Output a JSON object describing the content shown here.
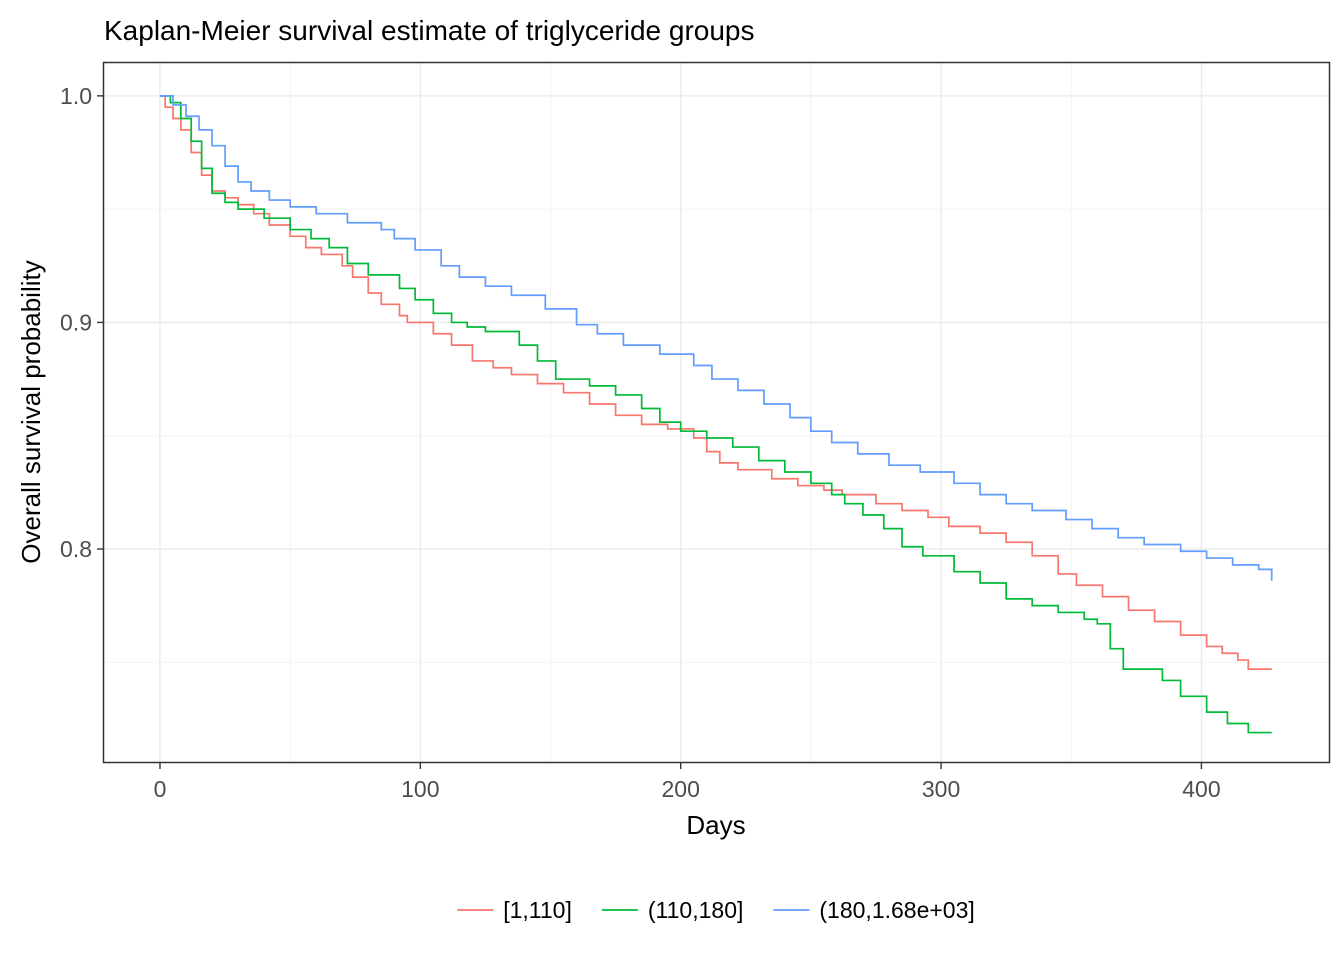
{
  "chart_data": {
    "type": "line",
    "step": true,
    "title": "Kaplan-Meier survival estimate of triglyceride groups",
    "xlabel": "Days",
    "ylabel": "Overall survival probability",
    "xlim": [
      -21.5,
      449
    ],
    "ylim": [
      0.706,
      1.0145
    ],
    "x_ticks": [
      0,
      100,
      200,
      300,
      400
    ],
    "x_tick_labels": [
      "0",
      "100",
      "200",
      "300",
      "400"
    ],
    "y_ticks": [
      0.8,
      0.9,
      1.0
    ],
    "y_tick_labels": [
      "0.8",
      "0.9",
      "1.0"
    ],
    "grid": true,
    "legend_position": "bottom",
    "series": [
      {
        "name": "[1,110]",
        "color": "#F8766D",
        "x": [
          0,
          2,
          5,
          8,
          12,
          16,
          20,
          25,
          30,
          36,
          42,
          50,
          56,
          62,
          70,
          74,
          80,
          85,
          92,
          95,
          105,
          112,
          120,
          128,
          135,
          145,
          155,
          165,
          175,
          185,
          195,
          205,
          210,
          215,
          222,
          235,
          245,
          255,
          262,
          275,
          285,
          295,
          303,
          315,
          325,
          335,
          345,
          352,
          362,
          372,
          382,
          392,
          402,
          408,
          414,
          418,
          427
        ],
        "y": [
          1.0,
          0.995,
          0.99,
          0.985,
          0.975,
          0.965,
          0.958,
          0.955,
          0.952,
          0.948,
          0.943,
          0.938,
          0.933,
          0.93,
          0.925,
          0.92,
          0.913,
          0.908,
          0.903,
          0.9,
          0.895,
          0.89,
          0.883,
          0.88,
          0.877,
          0.873,
          0.869,
          0.864,
          0.859,
          0.855,
          0.853,
          0.849,
          0.843,
          0.838,
          0.835,
          0.831,
          0.828,
          0.826,
          0.824,
          0.82,
          0.817,
          0.814,
          0.81,
          0.807,
          0.803,
          0.797,
          0.789,
          0.784,
          0.779,
          0.773,
          0.768,
          0.762,
          0.757,
          0.754,
          0.751,
          0.747,
          0.747
        ]
      },
      {
        "name": "(110,180]",
        "color": "#00BA38",
        "x": [
          0,
          4,
          8,
          12,
          16,
          20,
          25,
          30,
          40,
          50,
          58,
          65,
          72,
          80,
          92,
          98,
          105,
          112,
          118,
          125,
          138,
          145,
          152,
          165,
          175,
          185,
          192,
          200,
          210,
          220,
          230,
          240,
          250,
          258,
          263,
          270,
          278,
          285,
          293,
          305,
          315,
          325,
          335,
          345,
          355,
          360,
          365,
          370,
          385,
          392,
          402,
          410,
          418,
          427
        ],
        "y": [
          1.0,
          0.997,
          0.99,
          0.98,
          0.968,
          0.957,
          0.953,
          0.95,
          0.946,
          0.941,
          0.937,
          0.933,
          0.926,
          0.921,
          0.915,
          0.91,
          0.904,
          0.9,
          0.898,
          0.896,
          0.89,
          0.883,
          0.875,
          0.872,
          0.868,
          0.862,
          0.856,
          0.852,
          0.849,
          0.845,
          0.839,
          0.834,
          0.829,
          0.824,
          0.82,
          0.815,
          0.809,
          0.801,
          0.797,
          0.79,
          0.785,
          0.778,
          0.775,
          0.772,
          0.769,
          0.767,
          0.756,
          0.747,
          0.742,
          0.735,
          0.728,
          0.723,
          0.719,
          0.719
        ]
      },
      {
        "name": "(180,1.68e+03]",
        "color": "#619CFF",
        "x": [
          0,
          5,
          10,
          15,
          20,
          25,
          30,
          35,
          42,
          50,
          60,
          72,
          85,
          90,
          98,
          108,
          115,
          125,
          135,
          148,
          160,
          168,
          178,
          192,
          205,
          212,
          222,
          232,
          242,
          250,
          258,
          268,
          280,
          292,
          305,
          315,
          325,
          335,
          348,
          358,
          368,
          378,
          392,
          402,
          412,
          422,
          427
        ],
        "y": [
          1.0,
          0.996,
          0.991,
          0.985,
          0.978,
          0.969,
          0.962,
          0.958,
          0.954,
          0.951,
          0.948,
          0.944,
          0.941,
          0.937,
          0.932,
          0.925,
          0.92,
          0.916,
          0.912,
          0.906,
          0.899,
          0.895,
          0.89,
          0.886,
          0.881,
          0.875,
          0.87,
          0.864,
          0.858,
          0.852,
          0.847,
          0.842,
          0.837,
          0.834,
          0.829,
          0.824,
          0.82,
          0.817,
          0.813,
          0.809,
          0.805,
          0.802,
          0.799,
          0.796,
          0.793,
          0.791,
          0.786
        ]
      }
    ]
  }
}
